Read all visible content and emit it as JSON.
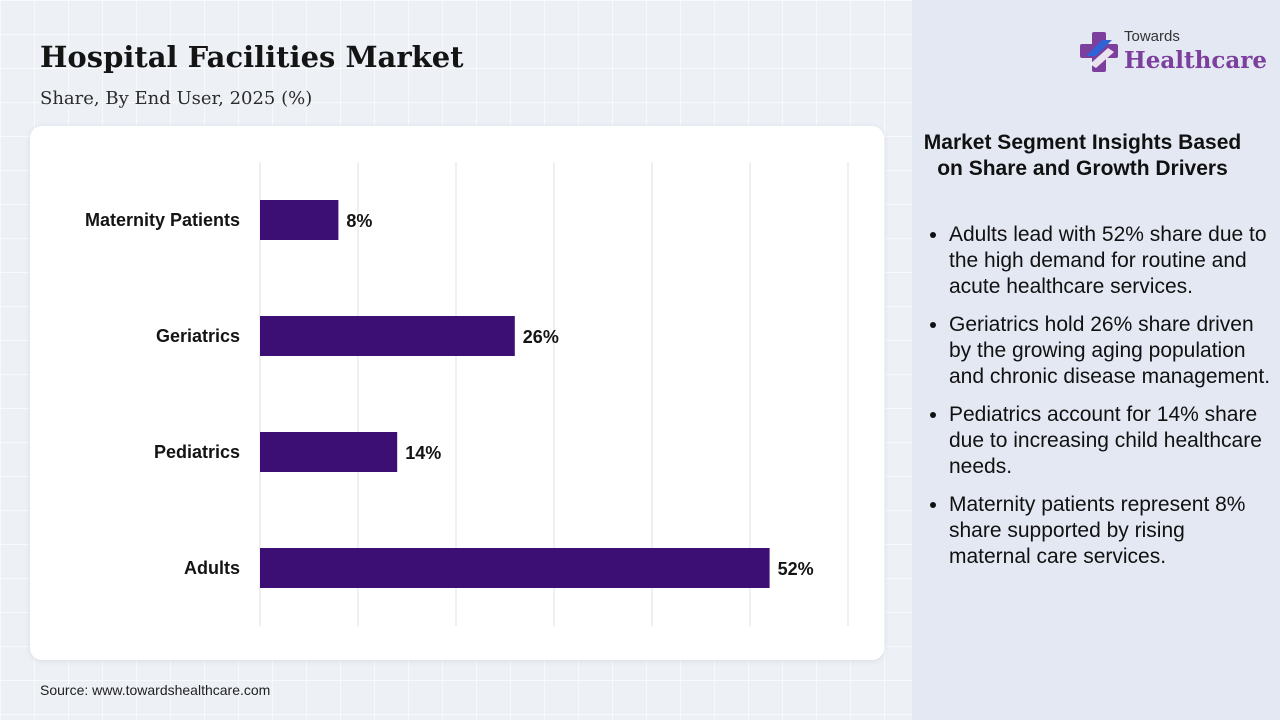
{
  "header": {
    "title": "Hospital Facilities Market",
    "subtitle": "Share, By End User, 2025 (%)"
  },
  "brand": {
    "line1": "Towards",
    "line2": "Healthcare",
    "icon": "plus-cross-icon"
  },
  "chart_data": {
    "type": "bar",
    "orientation": "horizontal",
    "categories": [
      "Maternity Patients",
      "Geriatrics",
      "Pediatrics",
      "Adults"
    ],
    "values": [
      8,
      26,
      14,
      52
    ],
    "value_labels": [
      "8%",
      "26%",
      "14%",
      "52%"
    ],
    "xlim": [
      0,
      60
    ],
    "grid": true,
    "legend": "none",
    "bar_color": "#3b0f73"
  },
  "insights": {
    "title": "Market Segment Insights Based on Share and Growth Drivers",
    "items": [
      "Adults lead with 52% share due to the high demand for routine and acute healthcare services.",
      "Geriatrics hold 26% share driven by the growing aging population and chronic disease management.",
      "Pediatrics account for 14% share due to increasing child healthcare needs.",
      "Maternity patients represent 8% share supported by rising maternal care services."
    ]
  },
  "footer": {
    "source": "Source: www.towardshealthcare.com"
  },
  "colors": {
    "bar": "#3b0f73",
    "brand_purple": "#7c3f9d",
    "brand_blue": "#2f63d6",
    "panel": "#e3e8f3"
  }
}
